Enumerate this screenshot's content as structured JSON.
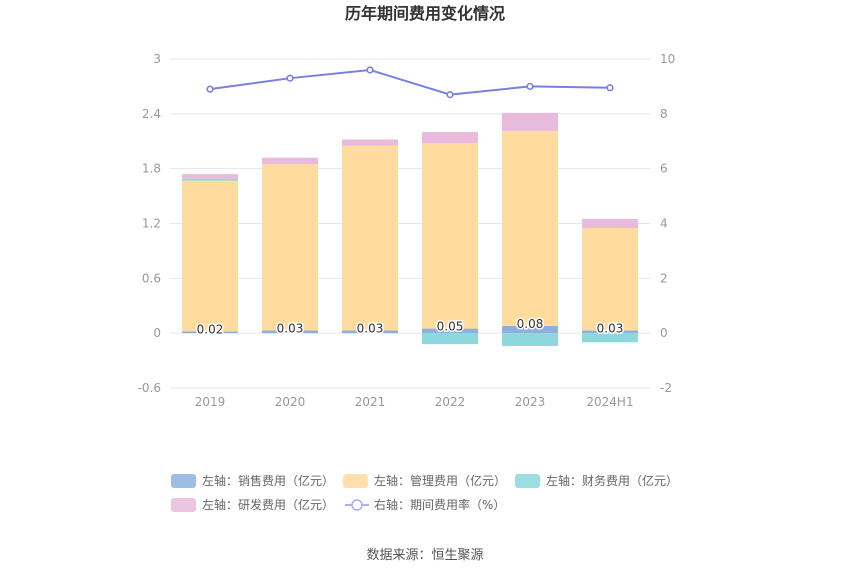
{
  "title": "历年期间费用变化情况",
  "source": "数据来源：恒生聚源",
  "chart_data": {
    "type": "bar",
    "stacked": true,
    "categories": [
      "2019",
      "2020",
      "2021",
      "2022",
      "2023",
      "2024H1"
    ],
    "series": [
      {
        "name": "左轴：销售费用（亿元）",
        "axis": "left",
        "color": "#8eb0df",
        "values": [
          0.02,
          0.03,
          0.03,
          0.05,
          0.08,
          0.03
        ],
        "labels": [
          "0.02",
          "0.03",
          "0.03",
          "0.05",
          "0.08",
          "0.03"
        ]
      },
      {
        "name": "左轴：管理费用（亿元）",
        "axis": "left",
        "color": "#ffdb9e",
        "values": [
          1.65,
          1.82,
          2.02,
          2.03,
          2.13,
          1.12
        ]
      },
      {
        "name": "左轴：财务费用（亿元）",
        "axis": "left",
        "color": "#8cd8dc",
        "values": [
          0.02,
          0.0,
          0.0,
          -0.12,
          -0.14,
          -0.1
        ]
      },
      {
        "name": "左轴：研发费用（亿元）",
        "axis": "left",
        "color": "#e8bbdc",
        "values": [
          0.05,
          0.07,
          0.07,
          0.12,
          0.2,
          0.1
        ]
      },
      {
        "name": "右轴：期间费用率（%）",
        "axis": "right",
        "type": "line",
        "color": "#7b7fe0",
        "values": [
          8.9,
          9.3,
          9.6,
          8.7,
          9.0,
          8.95
        ]
      }
    ],
    "left_axis": {
      "min": -0.6,
      "max": 3,
      "ticks": [
        "-0.6",
        "0",
        "0.6",
        "1.2",
        "1.8",
        "2.4",
        "3"
      ]
    },
    "right_axis": {
      "min": -2,
      "max": 10,
      "ticks": [
        "-2",
        "0",
        "2",
        "4",
        "6",
        "8",
        "10"
      ]
    },
    "grid": true,
    "legend_position": "bottom"
  }
}
